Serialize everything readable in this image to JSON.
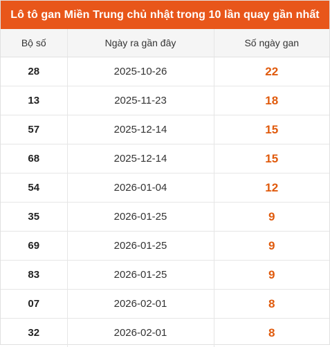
{
  "title": "Lô tô gan Miền Trung chủ nhật trong 10 lần quay gần nhất",
  "headers": {
    "number": "Bộ số",
    "last_date": "Ngày ra gần đây",
    "days_gan": "Số ngày gan"
  },
  "accent_color": "#e8561a",
  "value_color": "#e05a0c",
  "rows": [
    {
      "number": "28",
      "date": "2025-10-26",
      "days": "22"
    },
    {
      "number": "13",
      "date": "2025-11-23",
      "days": "18"
    },
    {
      "number": "57",
      "date": "2025-12-14",
      "days": "15"
    },
    {
      "number": "68",
      "date": "2025-12-14",
      "days": "15"
    },
    {
      "number": "54",
      "date": "2026-01-04",
      "days": "12"
    },
    {
      "number": "35",
      "date": "2026-01-25",
      "days": "9"
    },
    {
      "number": "69",
      "date": "2026-01-25",
      "days": "9"
    },
    {
      "number": "83",
      "date": "2026-01-25",
      "days": "9"
    },
    {
      "number": "07",
      "date": "2026-02-01",
      "days": "8"
    },
    {
      "number": "32",
      "date": "2026-02-01",
      "days": "8"
    }
  ]
}
